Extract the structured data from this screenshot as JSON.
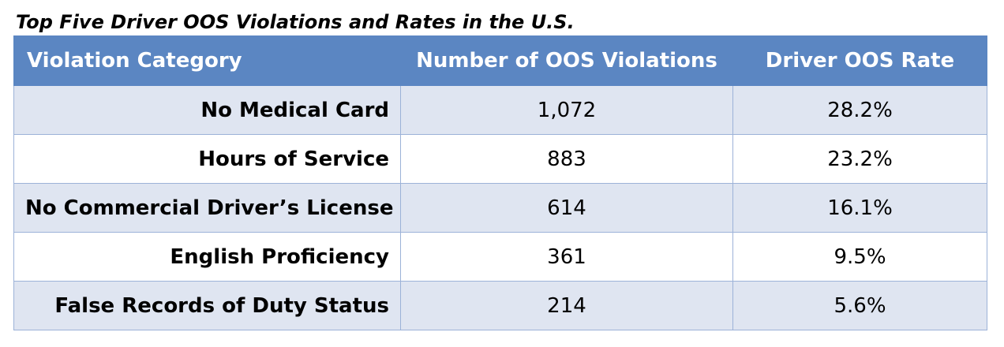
{
  "chart_data": {
    "type": "table",
    "title": "Top Five Driver OOS Violations and Rates in the U.S.",
    "columns": [
      "Violation Category",
      "Number of OOS Violations",
      "Driver OOS Rate"
    ],
    "rows": [
      {
        "category": "No Medical Card",
        "violations": "1,072",
        "rate": "28.2%"
      },
      {
        "category": "Hours of Service",
        "violations": "883",
        "rate": "23.2%"
      },
      {
        "category": "No Commercial Driver’s License",
        "violations": "614",
        "rate": "16.1%"
      },
      {
        "category": "English Proficiency",
        "violations": "361",
        "rate": "9.5%"
      },
      {
        "category": "False Records of Duty Status",
        "violations": "214",
        "rate": "5.6%"
      }
    ],
    "colors": {
      "header_background": "#5b86c2",
      "header_text": "#ffffff",
      "band_row": "#dfe5f1",
      "plain_row": "#ffffff",
      "grid_line": "#9cb2d8"
    }
  }
}
